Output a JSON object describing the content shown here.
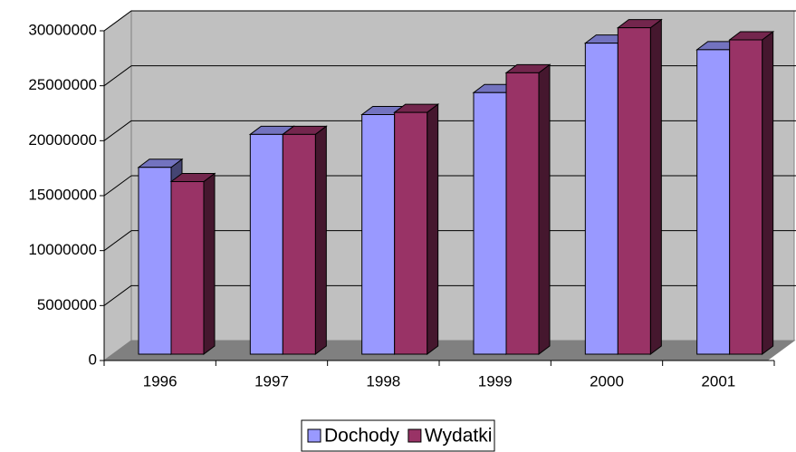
{
  "chart_data": {
    "type": "bar3d",
    "categories": [
      "1996",
      "1997",
      "1998",
      "1999",
      "2000",
      "2001"
    ],
    "series": [
      {
        "name": "Dochody",
        "color": "#9999ff",
        "values": [
          17000000,
          20000000,
          21800000,
          23800000,
          28300000,
          27700000
        ]
      },
      {
        "name": "Wydatki",
        "color": "#993366",
        "values": [
          15700000,
          20000000,
          22000000,
          25600000,
          29700000,
          28600000
        ]
      }
    ],
    "ylim": [
      0,
      30000000
    ],
    "yticks": [
      0,
      5000000,
      10000000,
      15000000,
      20000000,
      25000000,
      30000000
    ],
    "grid": true,
    "legend": "bottom"
  }
}
